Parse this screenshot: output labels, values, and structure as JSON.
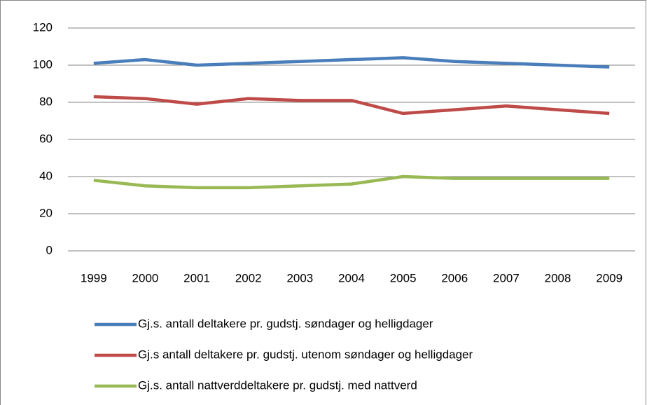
{
  "chart_data": {
    "type": "line",
    "categories": [
      "1999",
      "2000",
      "2001",
      "2002",
      "2003",
      "2004",
      "2005",
      "2006",
      "2007",
      "2008",
      "2009"
    ],
    "series": [
      {
        "name": "Gj.s. antall deltakere pr. gudstj. søndager og helligdager",
        "color": "#4a7ebb",
        "values": [
          101,
          103,
          100,
          101,
          102,
          103,
          104,
          102,
          101,
          100,
          99
        ]
      },
      {
        "name": "Gj.s antall deltakere pr. gudstj. utenom søndager og helligdager",
        "color": "#be4b48",
        "values": [
          83,
          82,
          79,
          82,
          81,
          81,
          74,
          76,
          78,
          76,
          74
        ]
      },
      {
        "name": "Gj.s. antall nattverddeltakere pr. gudstj. med nattverd",
        "color": "#98b954",
        "values": [
          38,
          35,
          34,
          34,
          35,
          36,
          40,
          39,
          39,
          39,
          39
        ]
      }
    ],
    "ylim": [
      0,
      120
    ],
    "yticks": [
      0,
      20,
      40,
      60,
      80,
      100,
      120
    ],
    "grid": true,
    "legend": "bottom"
  }
}
